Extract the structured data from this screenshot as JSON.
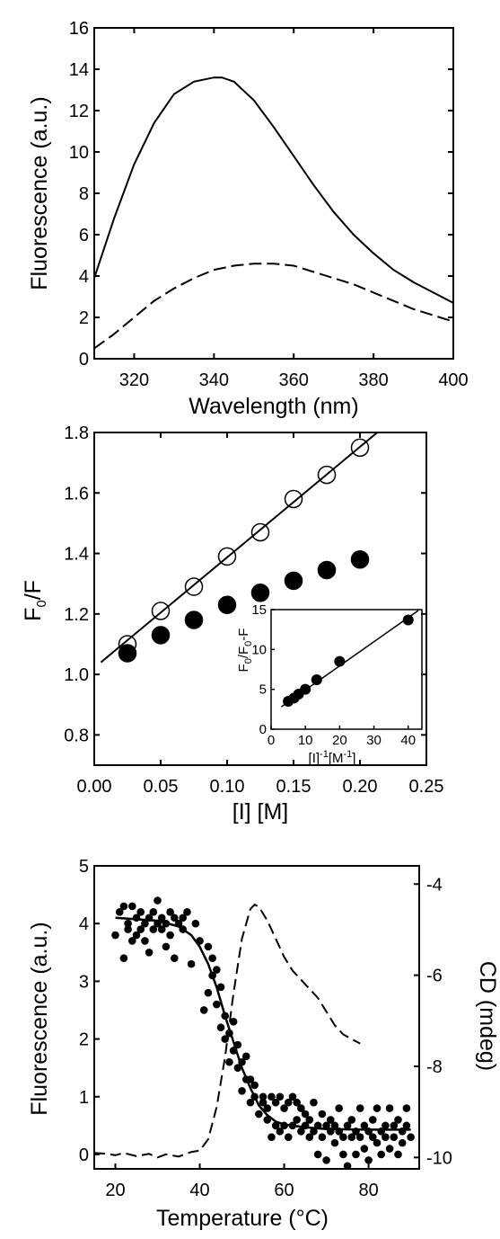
{
  "chart_data": [
    {
      "type": "line",
      "xlabel": "Wavelength (nm)",
      "ylabel": "Fluorescence (a.u.)",
      "xlim": [
        310,
        400
      ],
      "ylim": [
        0,
        16
      ],
      "xticks": [
        "320",
        "340",
        "360",
        "380",
        "400"
      ],
      "yticks": [
        "0",
        "2",
        "4",
        "6",
        "8",
        "10",
        "12",
        "14",
        "16"
      ],
      "series": [
        {
          "style": "solid",
          "x": [
            310,
            315,
            320,
            325,
            330,
            335,
            340,
            342,
            345,
            350,
            355,
            360,
            365,
            370,
            375,
            380,
            385,
            390,
            395,
            400
          ],
          "y": [
            3.9,
            6.8,
            9.4,
            11.4,
            12.8,
            13.4,
            13.6,
            13.6,
            13.4,
            12.5,
            11.2,
            9.8,
            8.4,
            7.1,
            6.0,
            5.1,
            4.3,
            3.7,
            3.2,
            2.7
          ]
        },
        {
          "style": "dashed",
          "x": [
            310,
            315,
            320,
            325,
            330,
            335,
            340,
            345,
            350,
            353,
            355,
            360,
            365,
            370,
            375,
            380,
            385,
            390,
            395,
            400
          ],
          "y": [
            0.5,
            1.2,
            2.0,
            2.8,
            3.4,
            3.9,
            4.3,
            4.5,
            4.6,
            4.6,
            4.6,
            4.5,
            4.2,
            3.9,
            3.6,
            3.2,
            2.8,
            2.4,
            2.1,
            1.8
          ]
        }
      ]
    },
    {
      "type": "scatter",
      "xlabel": "[I] [M]",
      "ylabel": "F0/F",
      "xlim": [
        0,
        0.25
      ],
      "ylim": [
        0.7,
        1.8
      ],
      "xticks": [
        "0.00",
        "0.05",
        "0.10",
        "0.15",
        "0.20",
        "0.25"
      ],
      "yticks": [
        "0.8",
        "1.0",
        "1.2",
        "1.4",
        "1.6",
        "1.8"
      ],
      "series": [
        {
          "marker": "open-circle",
          "x": [
            0.025,
            0.05,
            0.075,
            0.1,
            0.125,
            0.15,
            0.175,
            0.2
          ],
          "y": [
            1.1,
            1.21,
            1.29,
            1.39,
            1.47,
            1.58,
            1.66,
            1.75
          ]
        },
        {
          "marker": "filled-circle",
          "x": [
            0.025,
            0.05,
            0.075,
            0.1,
            0.125,
            0.15,
            0.175,
            0.2
          ],
          "y": [
            1.07,
            1.13,
            1.18,
            1.23,
            1.27,
            1.31,
            1.345,
            1.38
          ]
        }
      ],
      "fit_line": {
        "x": [
          0.005,
          0.213
        ],
        "y": [
          1.04,
          1.8
        ]
      },
      "inset": {
        "type": "scatter",
        "xlabel": "[I]-1[M-1]",
        "ylabel": "F0/F0-F",
        "xlim": [
          0,
          44
        ],
        "ylim": [
          0,
          15
        ],
        "xticks": [
          "0",
          "10",
          "20",
          "30",
          "40"
        ],
        "yticks": [
          "0",
          "5",
          "10",
          "15"
        ],
        "x": [
          5,
          6.7,
          8,
          10,
          13.3,
          20,
          40
        ],
        "y": [
          3.5,
          3.9,
          4.4,
          5.0,
          6.2,
          8.5,
          13.7
        ],
        "fit_line": {
          "x": [
            3,
            43
          ],
          "y": [
            2.8,
            14.9
          ]
        }
      }
    },
    {
      "type": "scatter",
      "xlabel": "Temperature (°C)",
      "ylabel": "Fluorescence (a.u.)",
      "y2label": "CD (mdeg)",
      "xlim": [
        15,
        92
      ],
      "ylim": [
        -0.25,
        5
      ],
      "y2lim": [
        -10.25,
        -3.6
      ],
      "xticks": [
        "20",
        "40",
        "60",
        "80"
      ],
      "yticks": [
        "0",
        "1",
        "2",
        "3",
        "4",
        "5"
      ],
      "y2ticks": [
        "-4",
        "-6",
        "-8",
        "-10"
      ],
      "fluorescence_points": {
        "x": [
          20,
          21,
          22,
          22,
          23,
          23,
          24,
          24,
          25,
          25,
          26,
          26,
          27,
          27,
          28,
          28,
          29,
          29,
          30,
          30,
          31,
          31,
          32,
          32,
          33,
          33,
          34,
          34,
          35,
          36,
          36,
          37,
          38,
          39,
          40,
          41,
          42,
          42,
          43,
          43,
          44,
          44,
          45,
          45,
          46,
          46,
          47,
          47,
          48,
          48,
          49,
          49,
          50,
          50,
          51,
          51,
          52,
          52,
          53,
          53,
          54,
          55,
          55,
          56,
          56,
          57,
          57,
          58,
          58,
          59,
          59,
          60,
          60,
          61,
          61,
          62,
          62,
          63,
          63,
          64,
          64,
          65,
          65,
          66,
          66,
          67,
          67,
          68,
          68,
          69,
          69,
          70,
          70,
          71,
          71,
          72,
          72,
          73,
          73,
          74,
          74,
          75,
          75,
          76,
          76,
          77,
          77,
          78,
          78,
          79,
          79,
          80,
          80,
          81,
          81,
          82,
          82,
          83,
          83,
          84,
          84,
          85,
          85,
          86,
          86,
          87,
          87,
          88,
          88,
          89,
          89,
          90
        ],
        "y": [
          3.8,
          4.2,
          3.4,
          4.3,
          4.0,
          3.9,
          4.3,
          3.7,
          4.1,
          3.8,
          3.9,
          4.2,
          4.0,
          3.7,
          4.1,
          3.5,
          4.2,
          3.9,
          4.4,
          4.0,
          3.9,
          4.1,
          4.0,
          3.6,
          4.2,
          3.8,
          4.1,
          3.4,
          4.0,
          3.9,
          4.1,
          4.2,
          3.3,
          4.0,
          3.7,
          2.5,
          3.6,
          2.8,
          3.1,
          3.4,
          2.6,
          3.2,
          2.2,
          2.9,
          2.0,
          2.4,
          2.1,
          1.6,
          2.3,
          1.8,
          1.5,
          1.9,
          1.6,
          1.1,
          1.7,
          1.3,
          1.3,
          0.9,
          1.0,
          1.2,
          0.7,
          0.9,
          1.0,
          0.6,
          0.8,
          0.3,
          1.0,
          0.5,
          0.9,
          0.4,
          1.0,
          0.5,
          0.8,
          0.9,
          0.3,
          1.0,
          0.5,
          0.6,
          0.9,
          0.4,
          0.8,
          0.5,
          0.7,
          0.3,
          0.6,
          0.4,
          0.9,
          0.0,
          0.5,
          0.3,
          0.7,
          0.5,
          -0.1,
          0.4,
          0.6,
          0.2,
          0.5,
          0.4,
          0.8,
          0.0,
          0.3,
          0.5,
          -0.2,
          0.6,
          0.3,
          0.4,
          0.0,
          0.8,
          0.3,
          0.5,
          0.1,
          0.4,
          -0.1,
          0.6,
          0.3,
          0.2,
          0.8,
          0.4,
          0.0,
          0.5,
          0.3,
          0.8,
          0.1,
          0.5,
          0.3,
          0.6,
          0.0,
          0.4,
          0.2,
          0.5,
          0.8,
          0.3
        ]
      },
      "fluorescence_fit": {
        "x": [
          20,
          30,
          35,
          38,
          40,
          42,
          44,
          46,
          48,
          50,
          52,
          54,
          56,
          58,
          60,
          65,
          70,
          80,
          90
        ],
        "y": [
          4.1,
          4.05,
          3.95,
          3.8,
          3.6,
          3.3,
          2.9,
          2.4,
          1.95,
          1.5,
          1.15,
          0.85,
          0.68,
          0.57,
          0.52,
          0.47,
          0.44,
          0.43,
          0.43
        ]
      },
      "cd_curve": {
        "x": [
          15,
          18,
          20,
          22,
          25,
          28,
          30,
          32,
          35,
          38,
          40,
          42,
          44,
          46,
          48,
          50,
          52,
          53,
          54,
          56,
          58,
          60,
          62,
          64,
          66,
          68,
          70,
          72,
          74,
          76,
          78
        ],
        "y": [
          -9.9,
          -9.92,
          -9.95,
          -9.9,
          -9.97,
          -9.92,
          -10.0,
          -9.93,
          -9.98,
          -9.88,
          -9.85,
          -9.6,
          -8.9,
          -7.8,
          -6.4,
          -5.2,
          -4.55,
          -4.45,
          -4.5,
          -4.8,
          -5.2,
          -5.6,
          -5.9,
          -6.1,
          -6.3,
          -6.5,
          -6.8,
          -7.1,
          -7.3,
          -7.4,
          -7.5
        ]
      }
    }
  ]
}
